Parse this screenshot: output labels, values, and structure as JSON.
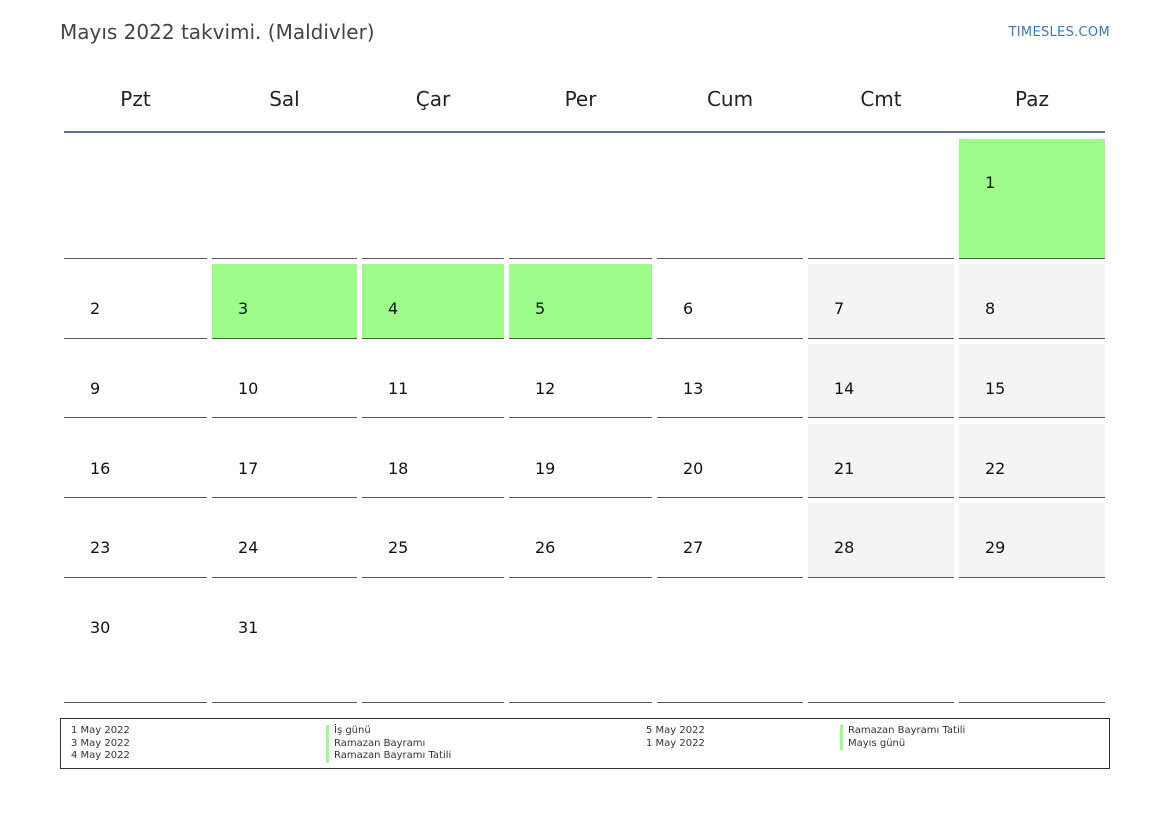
{
  "title": "Mayıs 2022 takvimi. (Maldivler)",
  "brand": "TIMESLES.COM",
  "colors": {
    "holiday": "#9dfc8a",
    "weekend": "#f4f4f4",
    "header_rule": "#5b739c",
    "brand": "#3a7ab8"
  },
  "weekdays": [
    "Pzt",
    "Sal",
    "Çar",
    "Per",
    "Cum",
    "Cmt",
    "Paz"
  ],
  "weeks": [
    [
      null,
      null,
      null,
      null,
      null,
      null,
      "1"
    ],
    [
      "2",
      "3",
      "4",
      "5",
      "6",
      "7",
      "8"
    ],
    [
      "9",
      "10",
      "11",
      "12",
      "13",
      "14",
      "15"
    ],
    [
      "16",
      "17",
      "18",
      "19",
      "20",
      "21",
      "22"
    ],
    [
      "23",
      "24",
      "25",
      "26",
      "27",
      "28",
      "29"
    ],
    [
      "30",
      "31",
      null,
      null,
      null,
      null,
      null
    ]
  ],
  "holiday_days": [
    "1",
    "3",
    "4",
    "5"
  ],
  "legend": {
    "left": [
      {
        "date": "1 May 2022",
        "name": "İş günü"
      },
      {
        "date": "3 May 2022",
        "name": "Ramazan Bayramı"
      },
      {
        "date": "4 May 2022",
        "name": "Ramazan Bayramı Tatili"
      }
    ],
    "right": [
      {
        "date": "5 May 2022",
        "name": "Ramazan Bayramı Tatili"
      },
      {
        "date": "1 May 2022",
        "name": "Mayıs günü"
      }
    ]
  }
}
